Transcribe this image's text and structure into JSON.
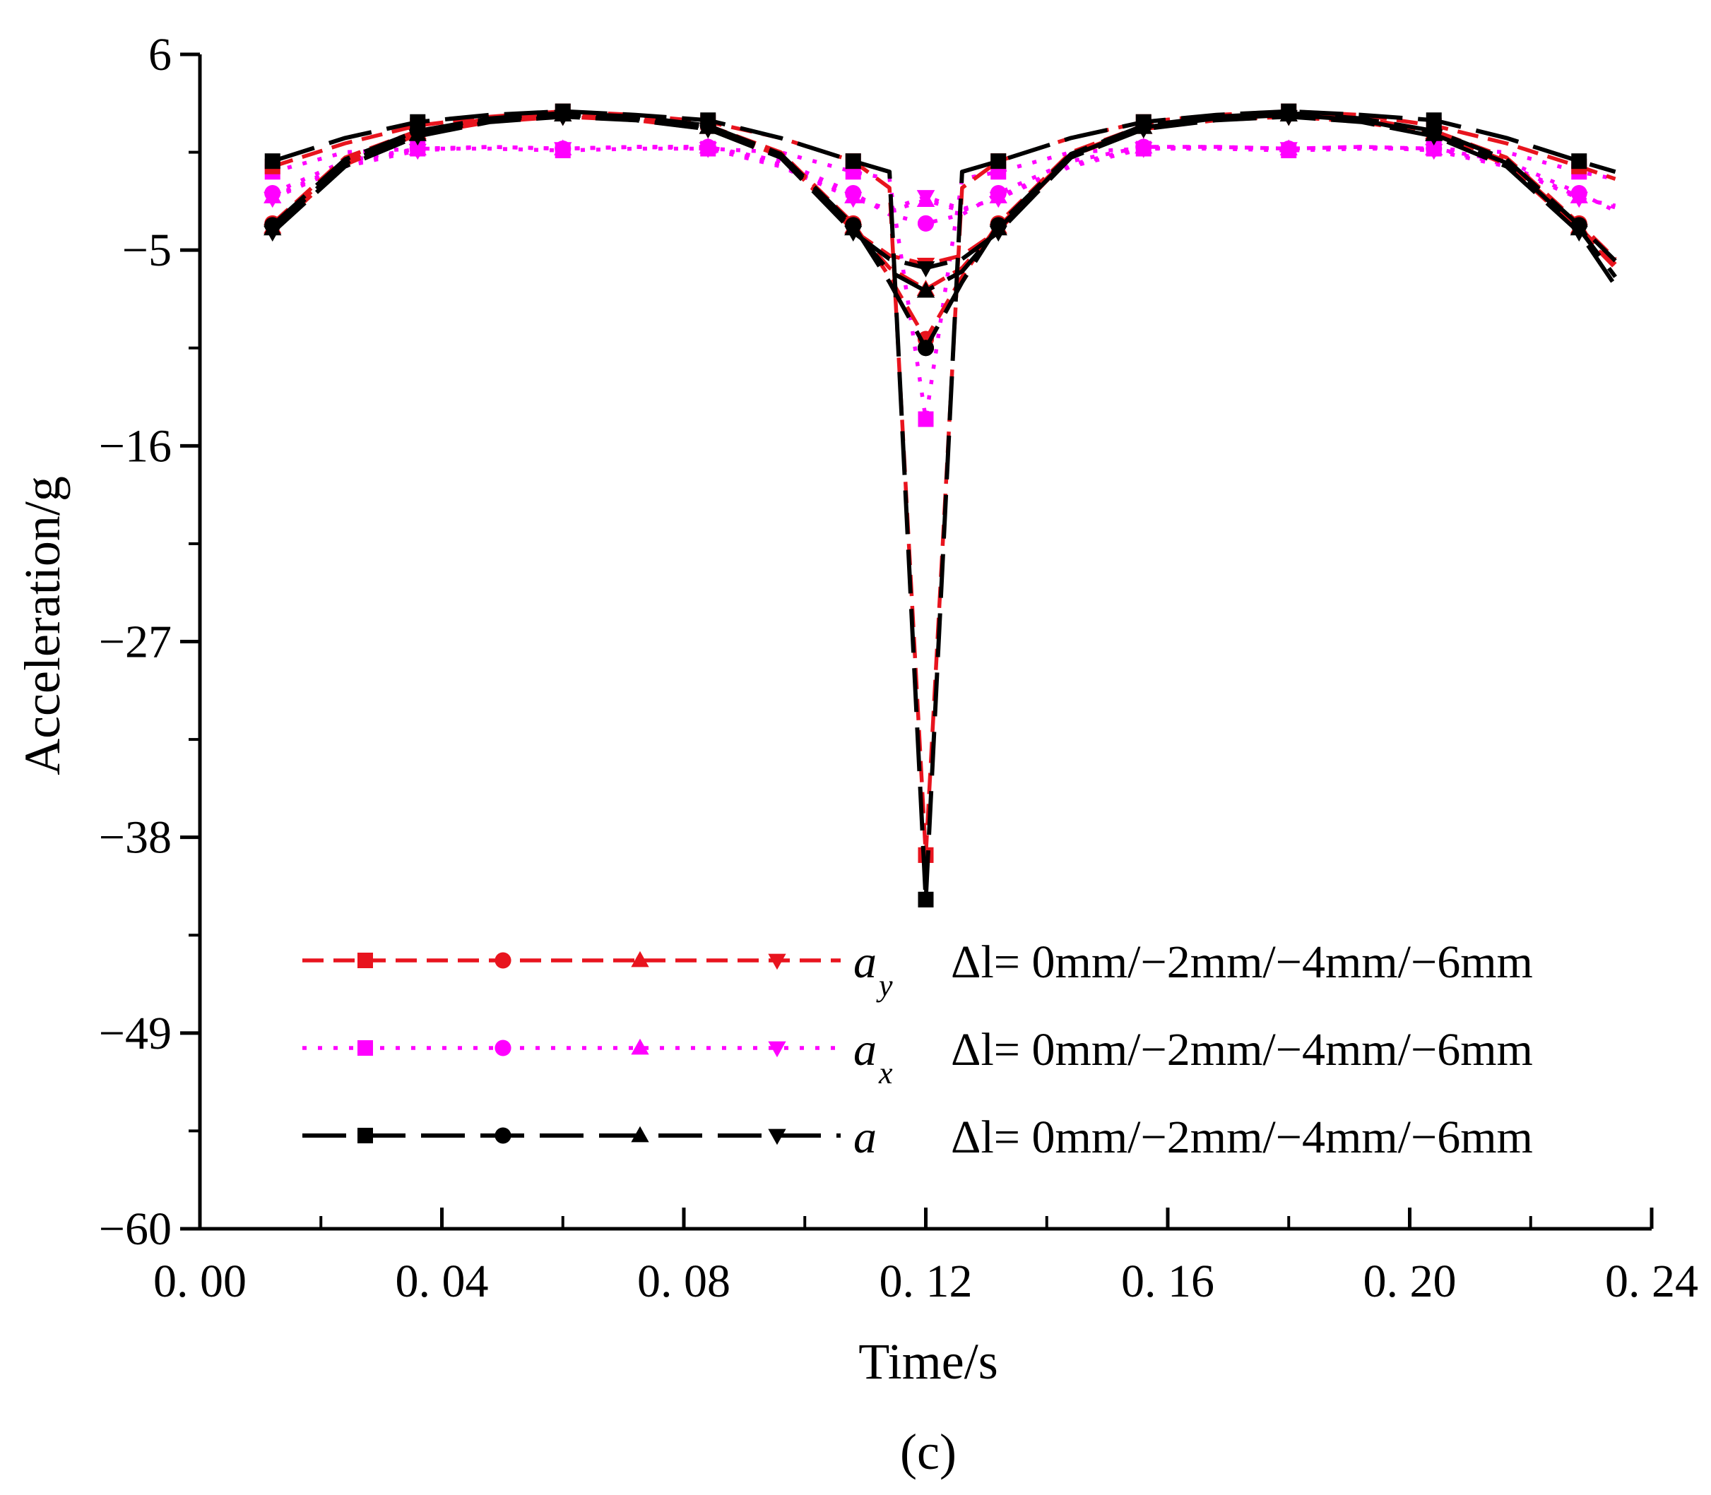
{
  "chart_data": {
    "type": "line",
    "title": "",
    "xlabel": "Time/s",
    "ylabel": "Acceleration/g",
    "panel_label": "(c)",
    "xlim": [
      0.0,
      0.24
    ],
    "ylim": [
      -60,
      6
    ],
    "xticks": [
      0.0,
      0.04,
      0.08,
      0.12,
      0.16,
      0.2,
      0.24
    ],
    "xtick_labels": [
      "0. 00",
      "0. 04",
      "0. 08",
      "0. 12",
      "0. 16",
      "0. 20",
      "0. 24"
    ],
    "yticks": [
      6,
      -5,
      -16,
      -27,
      -38,
      -49,
      -60
    ],
    "ytick_labels": [
      "6",
      "−5",
      "−16",
      "−27",
      "−38",
      "−49",
      "−60"
    ],
    "grid": false,
    "legend": [
      {
        "group": "ay",
        "symbol": "a",
        "subscript": "y",
        "text": "Δl= 0mm/−2mm/−4mm/−6mm",
        "color": "#e8141e",
        "dash": "dash"
      },
      {
        "group": "ax",
        "symbol": "a",
        "subscript": "x",
        "text": "Δl= 0mm/−2mm/−4mm/−6mm",
        "color": "#ff00ff",
        "dash": "dot"
      },
      {
        "group": "a",
        "symbol": "a",
        "subscript": "",
        "text": "Δl= 0mm/−2mm/−4mm/−6mm",
        "color": "#000000",
        "dash": "longdash"
      }
    ],
    "x": [
      0.012,
      0.024,
      0.036,
      0.048,
      0.06,
      0.072,
      0.084,
      0.096,
      0.108,
      0.114,
      0.12,
      0.126,
      0.132,
      0.144,
      0.156,
      0.168,
      0.18,
      0.192,
      0.204,
      0.216,
      0.228,
      0.234
    ],
    "series": [
      {
        "name": "ay Δl=0mm",
        "group": "ay",
        "marker": "square",
        "color": "#e8141e",
        "dash": "dash",
        "values": [
          -0.3,
          1.0,
          2.0,
          2.5,
          2.8,
          2.6,
          2.2,
          1.3,
          0.0,
          -1.5,
          -39.0,
          -1.5,
          0.0,
          1.3,
          2.2,
          2.6,
          2.8,
          2.6,
          2.0,
          1.0,
          -0.3,
          -1.0
        ]
      },
      {
        "name": "ay Δl=−2mm",
        "group": "ay",
        "marker": "circle",
        "color": "#e8141e",
        "dash": "dash",
        "values": [
          -3.5,
          0.2,
          1.7,
          2.4,
          2.7,
          2.5,
          2.0,
          0.5,
          -3.5,
          -6.5,
          -10.0,
          -6.5,
          -3.5,
          0.5,
          2.0,
          2.5,
          2.7,
          2.4,
          1.7,
          0.2,
          -3.5,
          -5.5
        ]
      },
      {
        "name": "ay Δl=−4mm",
        "group": "ay",
        "marker": "triangle-up",
        "color": "#e8141e",
        "dash": "dash",
        "values": [
          -3.7,
          0.0,
          1.6,
          2.3,
          2.6,
          2.4,
          1.9,
          0.4,
          -3.7,
          -6.0,
          -7.2,
          -6.0,
          -3.7,
          0.4,
          1.9,
          2.4,
          2.6,
          2.3,
          1.6,
          0.0,
          -3.7,
          -5.8
        ]
      },
      {
        "name": "ay Δl=−6mm",
        "group": "ay",
        "marker": "triangle-down",
        "color": "#e8141e",
        "dash": "dash",
        "values": [
          -3.9,
          -0.2,
          1.5,
          2.2,
          2.5,
          2.3,
          1.8,
          0.3,
          -3.9,
          -5.3,
          -5.8,
          -5.3,
          -3.9,
          0.3,
          1.8,
          2.3,
          2.5,
          2.2,
          1.5,
          -0.2,
          -3.9,
          -6.0
        ]
      },
      {
        "name": "ax Δl=0mm",
        "group": "ax",
        "marker": "square",
        "color": "#ff00ff",
        "dash": "dot",
        "values": [
          -0.6,
          0.5,
          0.7,
          0.7,
          0.6,
          0.7,
          0.7,
          0.5,
          -0.6,
          -1.0,
          -14.5,
          -1.0,
          -0.6,
          0.5,
          0.7,
          0.7,
          0.6,
          0.7,
          0.7,
          0.5,
          -0.6,
          -1.0
        ]
      },
      {
        "name": "ax Δl=−2mm",
        "group": "ax",
        "marker": "circle",
        "color": "#ff00ff",
        "dash": "dot",
        "values": [
          -1.8,
          0.0,
          0.7,
          0.8,
          0.7,
          0.8,
          0.8,
          0.0,
          -1.8,
          -3.0,
          -3.5,
          -3.0,
          -1.8,
          0.0,
          0.8,
          0.8,
          0.7,
          0.8,
          0.7,
          0.0,
          -1.8,
          -2.8
        ]
      },
      {
        "name": "ax Δl=−4mm",
        "group": "ax",
        "marker": "triangle-up",
        "color": "#ff00ff",
        "dash": "dot",
        "values": [
          -2.0,
          -0.2,
          0.7,
          0.8,
          0.7,
          0.8,
          0.8,
          -0.2,
          -2.0,
          -2.8,
          -2.2,
          -2.8,
          -2.0,
          -0.2,
          0.8,
          0.8,
          0.7,
          0.8,
          0.7,
          -0.2,
          -2.0,
          -2.6
        ]
      },
      {
        "name": "ax Δl=−6mm",
        "group": "ax",
        "marker": "triangle-down",
        "color": "#ff00ff",
        "dash": "dot",
        "values": [
          -2.1,
          -0.3,
          0.6,
          0.8,
          0.7,
          0.8,
          0.7,
          -0.3,
          -2.1,
          -2.7,
          -2.0,
          -2.7,
          -2.1,
          -0.3,
          0.7,
          0.8,
          0.7,
          0.8,
          0.6,
          -0.3,
          -2.1,
          -2.5
        ]
      },
      {
        "name": "a Δl=0mm",
        "group": "a",
        "marker": "square",
        "color": "#000000",
        "dash": "longdash",
        "values": [
          0.0,
          1.3,
          2.2,
          2.6,
          2.8,
          2.6,
          2.3,
          1.3,
          0.0,
          -0.6,
          -41.5,
          -0.6,
          0.0,
          1.3,
          2.2,
          2.6,
          2.8,
          2.6,
          2.3,
          1.3,
          0.0,
          -0.6
        ]
      },
      {
        "name": "a Δl=−2mm",
        "group": "a",
        "marker": "circle",
        "color": "#000000",
        "dash": "longdash",
        "values": [
          -3.6,
          0.1,
          1.7,
          2.4,
          2.7,
          2.5,
          2.0,
          0.4,
          -3.6,
          -6.8,
          -10.5,
          -6.8,
          -3.6,
          0.4,
          2.0,
          2.5,
          2.7,
          2.4,
          1.7,
          0.1,
          -3.6,
          -5.6
        ]
      },
      {
        "name": "a Δl=−4mm",
        "group": "a",
        "marker": "triangle-up",
        "color": "#000000",
        "dash": "longdash",
        "values": [
          -3.8,
          -0.1,
          1.5,
          2.3,
          2.6,
          2.4,
          1.9,
          0.3,
          -3.8,
          -6.2,
          -7.3,
          -6.2,
          -3.8,
          0.3,
          1.9,
          2.4,
          2.6,
          2.3,
          1.5,
          -0.1,
          -3.8,
          -6.5
        ]
      },
      {
        "name": "a Δl=−6mm",
        "group": "a",
        "marker": "triangle-down",
        "color": "#000000",
        "dash": "longdash",
        "values": [
          -4.0,
          -0.3,
          1.4,
          2.2,
          2.5,
          2.3,
          1.8,
          0.2,
          -4.0,
          -5.5,
          -6.0,
          -5.5,
          -4.0,
          0.2,
          1.8,
          2.3,
          2.5,
          2.2,
          1.4,
          -0.3,
          -4.0,
          -7.0
        ]
      }
    ]
  }
}
